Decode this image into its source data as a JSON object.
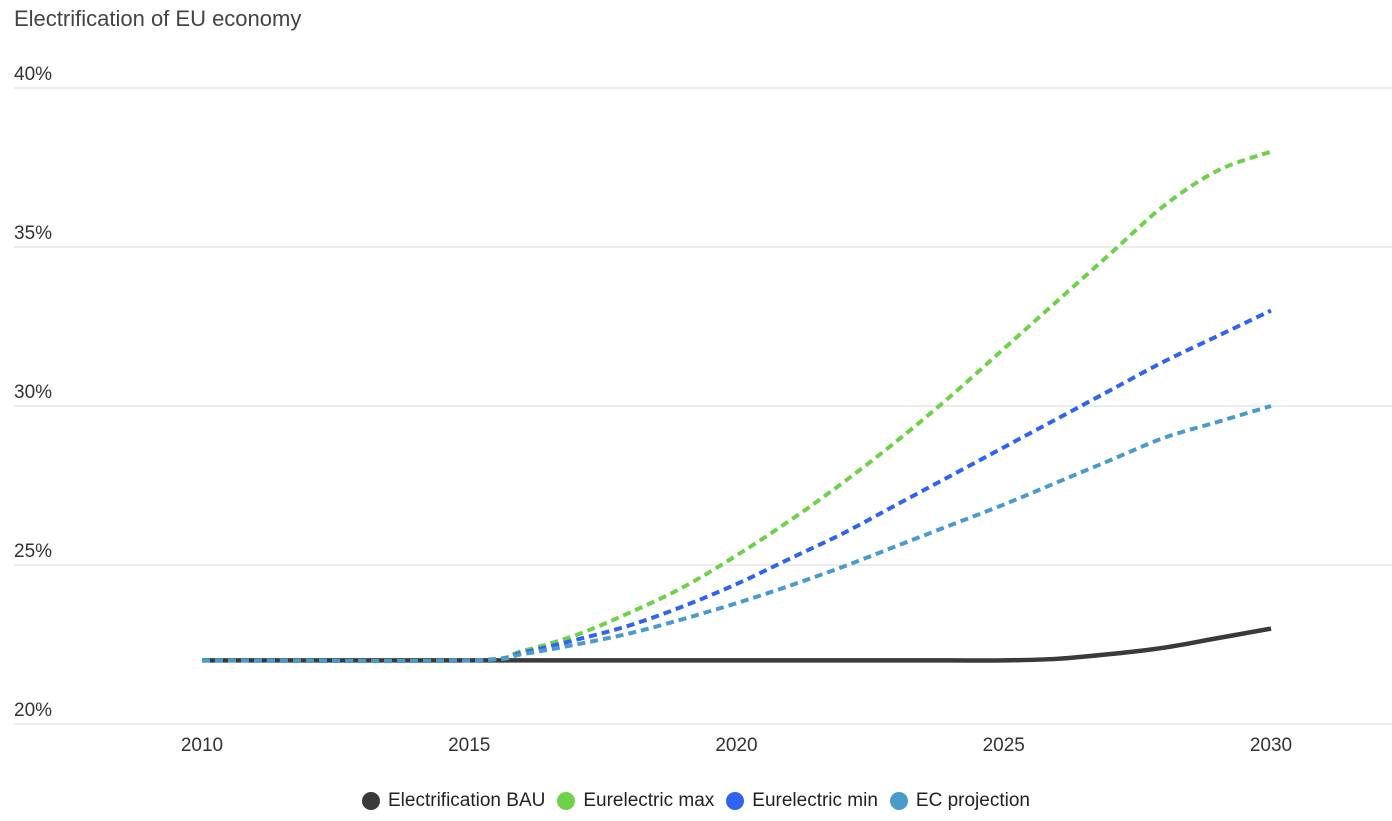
{
  "chart_data": {
    "type": "line",
    "title": "Electrification of EU economy",
    "xlabel": "",
    "ylabel": "",
    "x": [
      2010,
      2015,
      2016,
      2017,
      2018,
      2019,
      2020,
      2021,
      2022,
      2023,
      2024,
      2025,
      2026,
      2027,
      2028,
      2029,
      2030
    ],
    "xlim": [
      2008,
      2032
    ],
    "ylim": [
      20,
      40
    ],
    "yticks": [
      "20%",
      "25%",
      "30%",
      "35%",
      "40%"
    ],
    "xticks": [
      "2010",
      "2015",
      "2020",
      "2025",
      "2030"
    ],
    "grid": "horizontal",
    "legend_position": "bottom",
    "series": [
      {
        "name": "Electrification BAU",
        "color": "#3a3a3a",
        "dashed": false,
        "values": [
          22,
          22,
          22,
          22,
          22,
          22,
          22,
          22,
          22,
          22,
          22,
          22,
          22.05,
          22.2,
          22.4,
          22.7,
          23
        ]
      },
      {
        "name": "Eurelectric max",
        "color": "#6fd14a",
        "dashed": true,
        "values": [
          22,
          22,
          22.3,
          22.8,
          23.5,
          24.3,
          25.3,
          26.4,
          27.6,
          28.9,
          30.3,
          31.8,
          33.3,
          34.8,
          36.3,
          37.4,
          38
        ]
      },
      {
        "name": "Eurelectric min",
        "color": "#2f63f0",
        "dashed": true,
        "values": [
          22,
          22,
          22.25,
          22.65,
          23.1,
          23.7,
          24.4,
          25.2,
          26.0,
          26.9,
          27.8,
          28.7,
          29.6,
          30.5,
          31.4,
          32.2,
          33
        ]
      },
      {
        "name": "EC projection",
        "color": "#4a9bcb",
        "dashed": true,
        "values": [
          22,
          22,
          22.2,
          22.5,
          22.85,
          23.3,
          23.8,
          24.35,
          24.95,
          25.6,
          26.25,
          26.9,
          27.6,
          28.3,
          29.0,
          29.5,
          30
        ]
      }
    ]
  }
}
